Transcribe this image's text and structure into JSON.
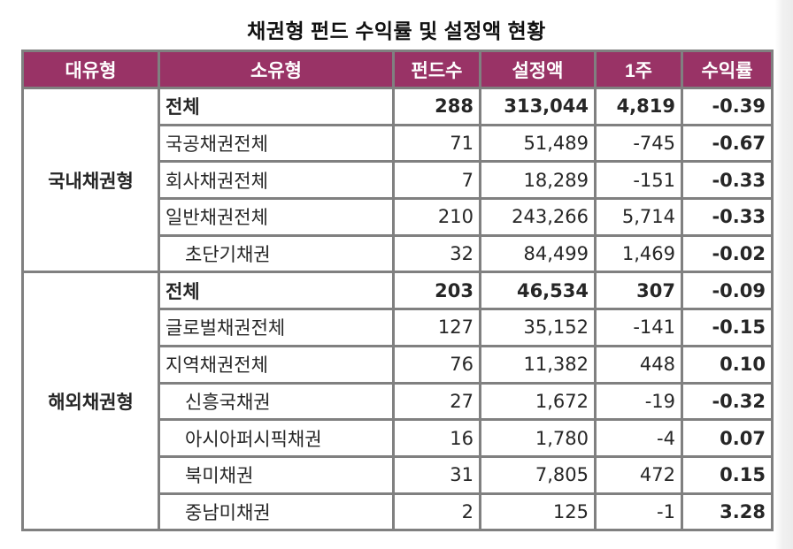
{
  "title": "채권형 펀드 수익률 및 설정액 현황",
  "colors": {
    "header_bg": "#993366",
    "header_text": "#ffffff",
    "border": "#808080",
    "negative": "#ff0000",
    "text": "#262626"
  },
  "table": {
    "headers": [
      "대유형",
      "소유형",
      "펀드수",
      "설정액",
      "1주",
      "수익률"
    ],
    "groups": [
      {
        "major": "국내채권형",
        "rows": [
          {
            "minor": "전체",
            "funds": "288",
            "amount": "313,044",
            "week": "4,819",
            "ret": "-0.39",
            "total": true,
            "indent": false
          },
          {
            "minor": "국공채권전체",
            "funds": "71",
            "amount": "51,489",
            "week": "-745",
            "ret": "-0.67",
            "total": false,
            "indent": false
          },
          {
            "minor": "회사채권전체",
            "funds": "7",
            "amount": "18,289",
            "week": "-151",
            "ret": "-0.33",
            "total": false,
            "indent": false
          },
          {
            "minor": "일반채권전체",
            "funds": "210",
            "amount": "243,266",
            "week": "5,714",
            "ret": "-0.33",
            "total": false,
            "indent": false
          },
          {
            "minor": "초단기채권",
            "funds": "32",
            "amount": "84,499",
            "week": "1,469",
            "ret": "-0.02",
            "total": false,
            "indent": true
          }
        ]
      },
      {
        "major": "해외채권형",
        "rows": [
          {
            "minor": "전체",
            "funds": "203",
            "amount": "46,534",
            "week": "307",
            "ret": "-0.09",
            "total": true,
            "indent": false
          },
          {
            "minor": "글로벌채권전체",
            "funds": "127",
            "amount": "35,152",
            "week": "-141",
            "ret": "-0.15",
            "total": false,
            "indent": false
          },
          {
            "minor": "지역채권전체",
            "funds": "76",
            "amount": "11,382",
            "week": "448",
            "ret": "0.10",
            "total": false,
            "indent": false
          },
          {
            "minor": "신흥국채권",
            "funds": "27",
            "amount": "1,672",
            "week": "-19",
            "ret": "-0.32",
            "total": false,
            "indent": true
          },
          {
            "minor": "아시아퍼시픽채권",
            "funds": "16",
            "amount": "1,780",
            "week": "-4",
            "ret": "0.07",
            "total": false,
            "indent": true
          },
          {
            "minor": "북미채권",
            "funds": "31",
            "amount": "7,805",
            "week": "472",
            "ret": "0.15",
            "total": false,
            "indent": true
          },
          {
            "minor": "중남미채권",
            "funds": "2",
            "amount": "125",
            "week": "-1",
            "ret": "3.28",
            "total": false,
            "indent": true
          }
        ]
      }
    ]
  }
}
